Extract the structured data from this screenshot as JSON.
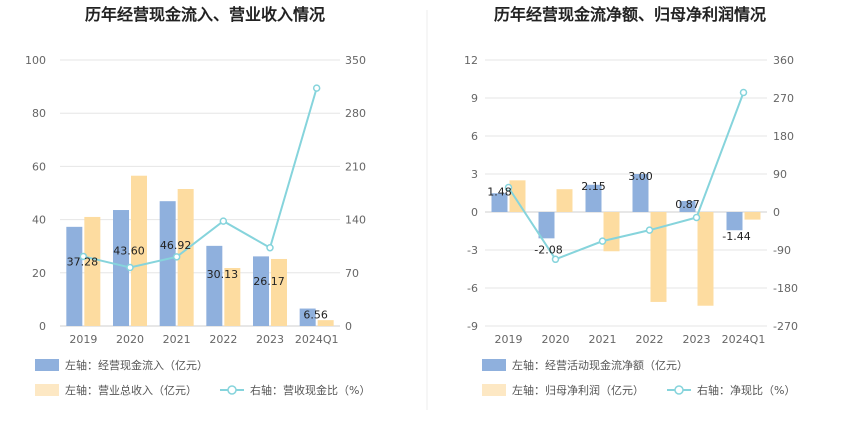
{
  "chart_data": [
    {
      "type": "bar",
      "title": "历年经营现金流入、营业收入情况",
      "categories": [
        "2019",
        "2020",
        "2021",
        "2022",
        "2023",
        "2024Q1"
      ],
      "left_axis": {
        "ylim": [
          0,
          100
        ],
        "ticks": [
          "0",
          "20",
          "40",
          "60",
          "80",
          "100"
        ]
      },
      "right_axis": {
        "ylim": [
          0,
          350
        ],
        "ticks": [
          "0",
          "70",
          "140",
          "210",
          "280",
          "350"
        ]
      },
      "series": [
        {
          "name": "左轴：经营现金流入（亿元）",
          "kind": "bar",
          "axis": "left",
          "color": "#8fb0dd",
          "values": [
            37.28,
            43.6,
            46.92,
            30.13,
            26.17,
            6.56
          ],
          "labels": [
            "37.28",
            "43.60",
            "46.92",
            "30.13",
            "26.17",
            "6.56"
          ]
        },
        {
          "name": "左轴：营业总收入（亿元）",
          "kind": "bar",
          "axis": "left",
          "color": "#fddca0",
          "values": [
            41,
            56.5,
            51.5,
            21.8,
            25.2,
            2.2
          ]
        },
        {
          "name": "右轴：营收现金比（%）",
          "kind": "line",
          "axis": "right",
          "color": "#86d4dc",
          "values": [
            91.5,
            77.0,
            91.0,
            138.0,
            103.0,
            313.0
          ]
        }
      ],
      "grid": true,
      "legend": "bottom"
    },
    {
      "type": "bar",
      "title": "历年经营现金流净额、归母净利润情况",
      "categories": [
        "2019",
        "2020",
        "2021",
        "2022",
        "2023",
        "2024Q1"
      ],
      "left_axis": {
        "ylim": [
          -9,
          12
        ],
        "ticks": [
          "-9",
          "-6",
          "-3",
          "0",
          "3",
          "6",
          "9",
          "12"
        ]
      },
      "right_axis": {
        "ylim": [
          -270,
          360
        ],
        "ticks": [
          "-270",
          "-180",
          "-90",
          "0",
          "90",
          "180",
          "270",
          "360"
        ]
      },
      "series": [
        {
          "name": "左轴：经营活动现金流净额（亿元）",
          "kind": "bar",
          "axis": "left",
          "color": "#8fb0dd",
          "values": [
            1.48,
            -2.08,
            2.15,
            3.0,
            0.87,
            -1.44
          ],
          "labels": [
            "1.48",
            "-2.08",
            "2.15",
            "3.00",
            "0.87",
            "-1.44"
          ]
        },
        {
          "name": "左轴：归母净利润（亿元）",
          "kind": "bar",
          "axis": "left",
          "color": "#fddca0",
          "values": [
            2.5,
            1.8,
            -3.1,
            -7.1,
            -7.4,
            -0.6
          ]
        },
        {
          "name": "右轴：净现比（%）",
          "kind": "line",
          "axis": "right",
          "color": "#86d4dc",
          "values": [
            58,
            -112,
            -69,
            -43,
            -13,
            283
          ]
        }
      ],
      "grid": true,
      "legend": "bottom"
    }
  ]
}
